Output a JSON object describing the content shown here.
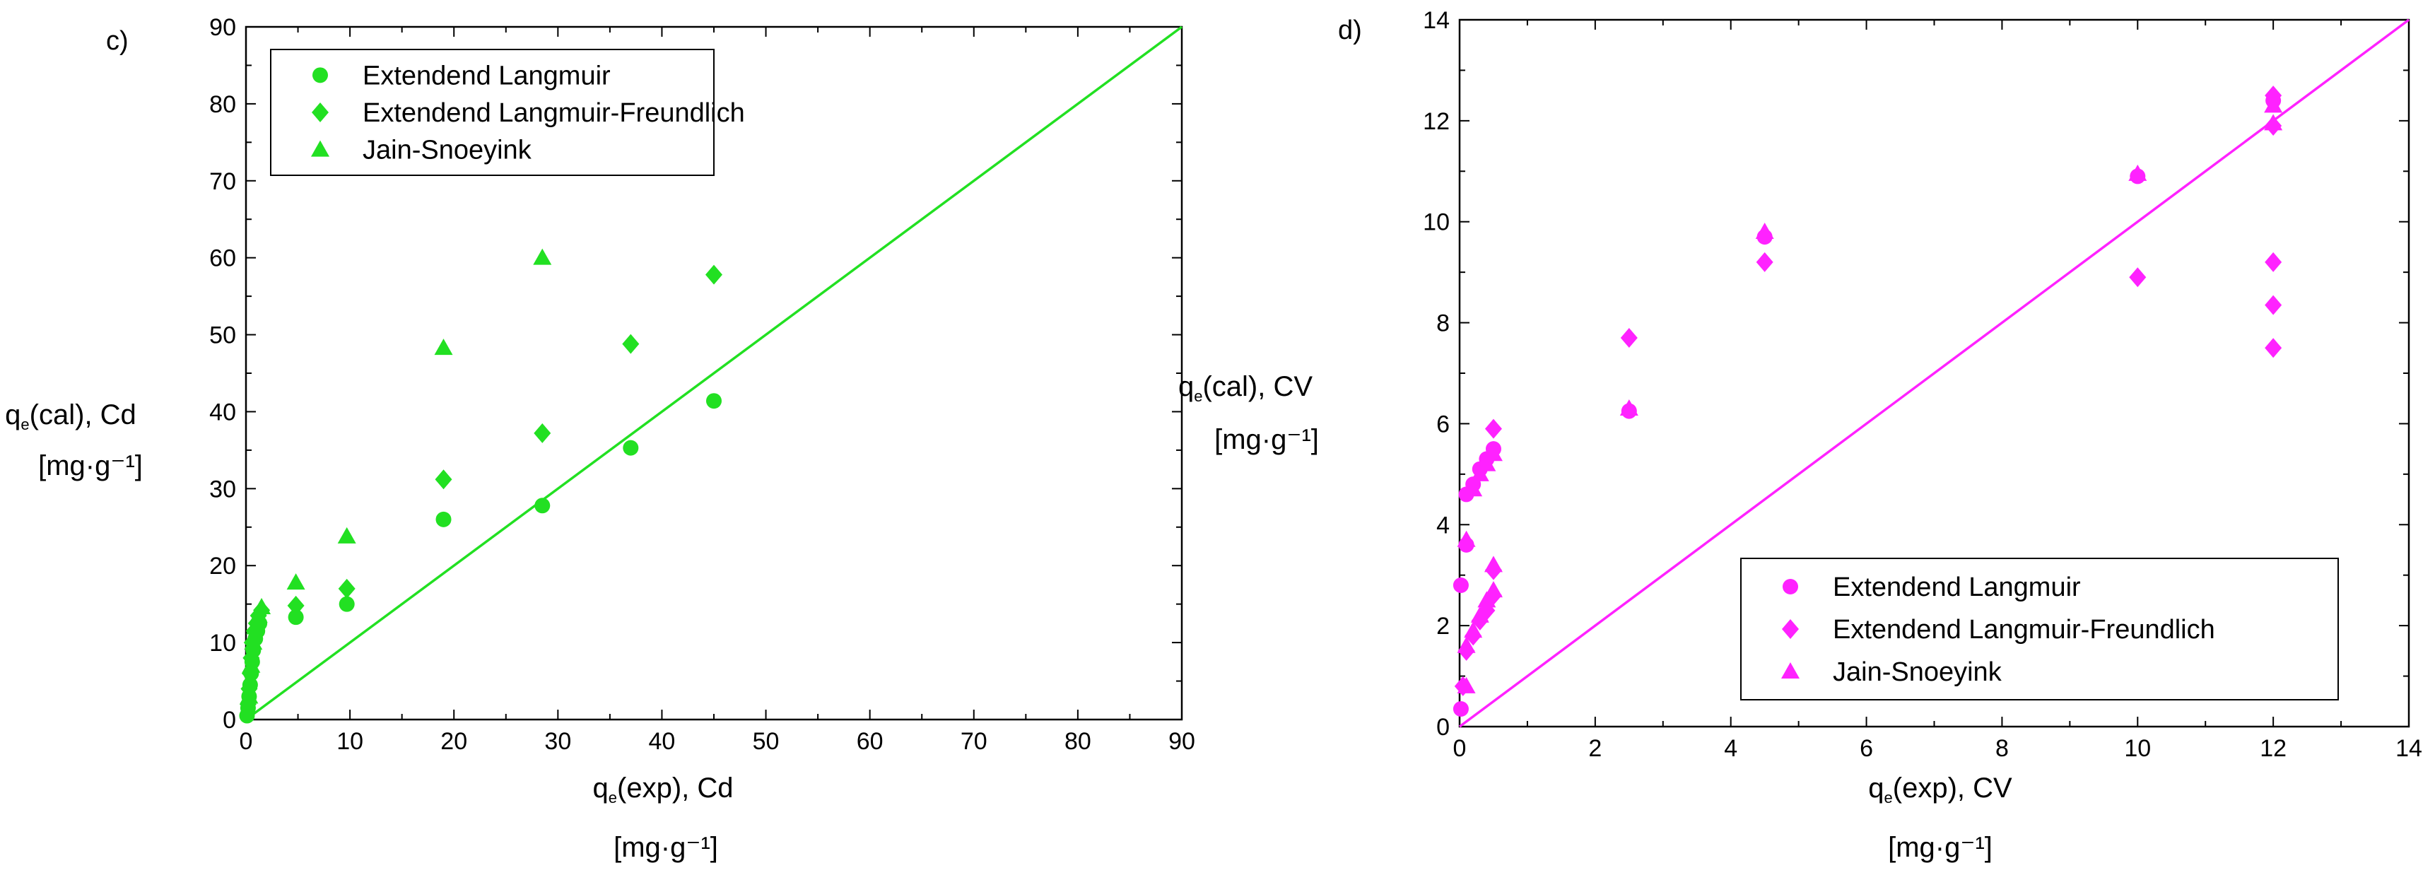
{
  "chart_data": [
    {
      "type": "scatter",
      "panel_label": "c)",
      "xlabel_main": "q",
      "xlabel_sub": "e",
      "xlabel_rest": "(exp), Cd",
      "xunit": "[mg·g⁻¹]",
      "ylabel_main": "q",
      "ylabel_sub": "e",
      "ylabel_rest": "(cal), Cd",
      "yunit": "[mg·g⁻¹]",
      "xlim": [
        0,
        90
      ],
      "ylim": [
        0,
        90
      ],
      "xticks": [
        0,
        10,
        20,
        30,
        40,
        50,
        60,
        70,
        80,
        90
      ],
      "yticks": [
        0,
        10,
        20,
        30,
        40,
        50,
        60,
        70,
        80,
        90
      ],
      "legend_position": "top-left",
      "color": "#22e022",
      "reference_line": {
        "from": [
          0,
          0
        ],
        "to": [
          90,
          90
        ]
      },
      "series": [
        {
          "name": "Extendend Langmuir",
          "marker": "circle",
          "points": [
            [
              0.1,
              0.5
            ],
            [
              0.2,
              1.5
            ],
            [
              0.3,
              3
            ],
            [
              0.4,
              4.5
            ],
            [
              0.5,
              6
            ],
            [
              0.6,
              7.5
            ],
            [
              0.7,
              9
            ],
            [
              0.9,
              10.5
            ],
            [
              1.1,
              11.5
            ],
            [
              1.3,
              12.5
            ],
            [
              4.8,
              13.3
            ],
            [
              9.7,
              15
            ],
            [
              19,
              26
            ],
            [
              28.5,
              27.8
            ],
            [
              37,
              35.3
            ],
            [
              45,
              41.4
            ]
          ]
        },
        {
          "name": "Extendend Langmuir-Freundlich",
          "marker": "diamond",
          "points": [
            [
              0.2,
              2
            ],
            [
              0.3,
              4
            ],
            [
              0.4,
              6
            ],
            [
              0.5,
              8
            ],
            [
              0.6,
              10
            ],
            [
              0.8,
              11.5
            ],
            [
              1.0,
              12.5
            ],
            [
              1.2,
              13.5
            ],
            [
              1.5,
              14.2
            ],
            [
              4.8,
              14.8
            ],
            [
              9.7,
              17
            ],
            [
              19,
              31.2
            ],
            [
              28.5,
              37.2
            ],
            [
              37,
              48.8
            ],
            [
              45,
              57.8
            ]
          ]
        },
        {
          "name": "Jain-Snoeyink",
          "marker": "triangle",
          "points": [
            [
              0.3,
              3
            ],
            [
              0.5,
              7
            ],
            [
              0.7,
              10
            ],
            [
              0.9,
              12
            ],
            [
              1.2,
              13.5
            ],
            [
              1.5,
              14.6
            ],
            [
              4.8,
              17.8
            ],
            [
              9.7,
              23.8
            ],
            [
              19,
              48.3
            ],
            [
              28.5,
              60
            ]
          ]
        }
      ]
    },
    {
      "type": "scatter",
      "panel_label": "d)",
      "xlabel_main": "q",
      "xlabel_sub": "e",
      "xlabel_rest": "(exp), CV",
      "xunit": "[mg·g⁻¹]",
      "ylabel_main": "q",
      "ylabel_sub": "e",
      "ylabel_rest": "(cal), CV",
      "yunit": "[mg·g⁻¹]",
      "xlim": [
        0,
        14
      ],
      "ylim": [
        0,
        14
      ],
      "xticks": [
        0,
        2,
        4,
        6,
        8,
        10,
        12,
        14
      ],
      "yticks": [
        0,
        2,
        4,
        6,
        8,
        10,
        12,
        14
      ],
      "legend_position": "bottom-right",
      "color": "#ff22ff",
      "reference_line": {
        "from": [
          0,
          0
        ],
        "to": [
          14,
          14
        ]
      },
      "series": [
        {
          "name": "Extendend Langmuir",
          "marker": "circle",
          "points": [
            [
              0.02,
              0.35
            ],
            [
              0.02,
              2.8
            ],
            [
              0.1,
              3.6
            ],
            [
              0.1,
              4.6
            ],
            [
              0.2,
              4.8
            ],
            [
              0.3,
              5.1
            ],
            [
              0.4,
              5.3
            ],
            [
              0.5,
              5.5
            ],
            [
              2.5,
              6.25
            ],
            [
              4.5,
              9.7
            ],
            [
              10,
              10.9
            ],
            [
              12,
              12.4
            ]
          ]
        },
        {
          "name": "Extendend Langmuir-Freundlich",
          "marker": "diamond",
          "points": [
            [
              0.05,
              0.8
            ],
            [
              0.1,
              1.5
            ],
            [
              0.2,
              1.8
            ],
            [
              0.3,
              2.1
            ],
            [
              0.4,
              2.3
            ],
            [
              0.5,
              2.6
            ],
            [
              0.5,
              3.1
            ],
            [
              0.5,
              5.9
            ],
            [
              2.5,
              7.7
            ],
            [
              4.5,
              9.2
            ],
            [
              10,
              8.9
            ],
            [
              12,
              7.5
            ],
            [
              12,
              8.35
            ],
            [
              12,
              9.2
            ],
            [
              12,
              11.9
            ],
            [
              12,
              12.5
            ]
          ]
        },
        {
          "name": "Jain-Snoeyink",
          "marker": "triangle",
          "points": [
            [
              0.1,
              0.8
            ],
            [
              0.1,
              1.6
            ],
            [
              0.2,
              1.9
            ],
            [
              0.3,
              2.2
            ],
            [
              0.4,
              2.5
            ],
            [
              0.5,
              2.7
            ],
            [
              0.5,
              3.2
            ],
            [
              0.1,
              3.7
            ],
            [
              0.2,
              4.7
            ],
            [
              0.3,
              5.0
            ],
            [
              0.4,
              5.2
            ],
            [
              0.5,
              5.4
            ],
            [
              2.5,
              6.3
            ],
            [
              4.5,
              9.8
            ],
            [
              10,
              10.95
            ],
            [
              12,
              11.95
            ],
            [
              12,
              12.3
            ]
          ]
        }
      ]
    }
  ]
}
